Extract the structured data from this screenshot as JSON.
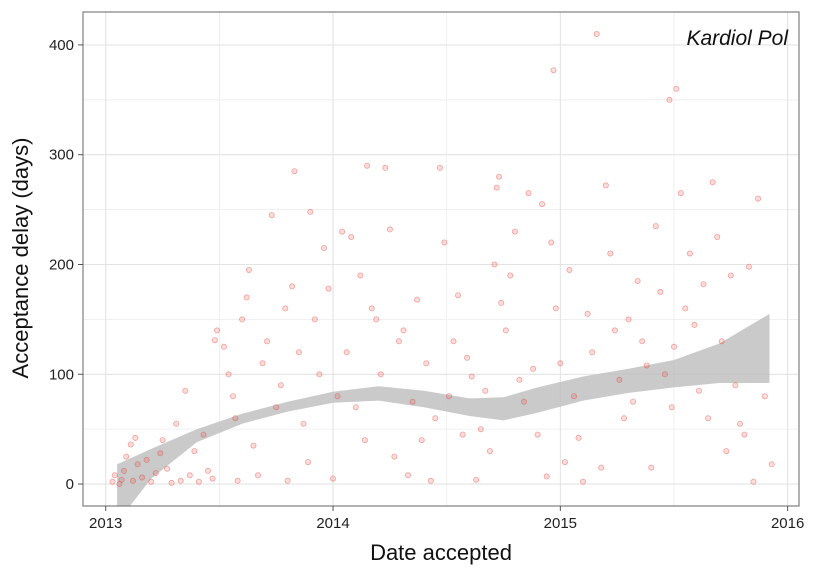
{
  "chart_data": {
    "type": "scatter",
    "title": "",
    "annotation": "Kardiol Pol",
    "xlabel": "Date accepted",
    "ylabel": "Acceptance delay (days)",
    "x_ticks": [
      "2013",
      "2014",
      "2015",
      "2016"
    ],
    "x_tick_values": [
      2013,
      2014,
      2015,
      2016
    ],
    "y_ticks": [
      "0",
      "100",
      "200",
      "300",
      "400"
    ],
    "y_tick_values": [
      0,
      100,
      200,
      300,
      400
    ],
    "xlim": [
      2012.9,
      2016.05
    ],
    "ylim": [
      -20,
      430
    ],
    "grid": true,
    "legend": "none",
    "colors": {
      "points": "#e8403a",
      "ribbon": "#bdbdbd",
      "grid": "#ececec",
      "panel_border": "#7f7f7f"
    },
    "smooth_band": {
      "x": [
        2013.05,
        2013.2,
        2013.4,
        2013.6,
        2013.8,
        2014.0,
        2014.2,
        2014.4,
        2014.6,
        2014.75,
        2014.9,
        2015.1,
        2015.3,
        2015.5,
        2015.7,
        2015.92
      ],
      "lower": [
        -35,
        5,
        38,
        55,
        66,
        74,
        76,
        70,
        62,
        58,
        65,
        76,
        83,
        88,
        92,
        92
      ],
      "upper": [
        18,
        32,
        50,
        64,
        75,
        84,
        89,
        85,
        78,
        79,
        88,
        98,
        105,
        113,
        128,
        155
      ]
    },
    "points": [
      [
        2013.03,
        2
      ],
      [
        2013.04,
        8
      ],
      [
        2013.06,
        0
      ],
      [
        2013.07,
        4
      ],
      [
        2013.08,
        12
      ],
      [
        2013.09,
        25
      ],
      [
        2013.11,
        36
      ],
      [
        2013.12,
        3
      ],
      [
        2013.13,
        42
      ],
      [
        2013.14,
        18
      ],
      [
        2013.16,
        6
      ],
      [
        2013.18,
        22
      ],
      [
        2013.2,
        2
      ],
      [
        2013.22,
        10
      ],
      [
        2013.24,
        28
      ],
      [
        2013.25,
        40
      ],
      [
        2013.27,
        14
      ],
      [
        2013.29,
        1
      ],
      [
        2013.31,
        55
      ],
      [
        2013.33,
        3
      ],
      [
        2013.35,
        85
      ],
      [
        2013.37,
        8
      ],
      [
        2013.39,
        30
      ],
      [
        2013.41,
        2
      ],
      [
        2013.43,
        45
      ],
      [
        2013.45,
        12
      ],
      [
        2013.47,
        5
      ],
      [
        2013.48,
        131
      ],
      [
        2013.49,
        140
      ],
      [
        2013.52,
        125
      ],
      [
        2013.54,
        100
      ],
      [
        2013.56,
        80
      ],
      [
        2013.57,
        60
      ],
      [
        2013.58,
        3
      ],
      [
        2013.6,
        150
      ],
      [
        2013.62,
        170
      ],
      [
        2013.63,
        195
      ],
      [
        2013.65,
        35
      ],
      [
        2013.67,
        8
      ],
      [
        2013.69,
        110
      ],
      [
        2013.71,
        130
      ],
      [
        2013.73,
        245
      ],
      [
        2013.75,
        70
      ],
      [
        2013.77,
        90
      ],
      [
        2013.79,
        160
      ],
      [
        2013.8,
        3
      ],
      [
        2013.82,
        180
      ],
      [
        2013.83,
        285
      ],
      [
        2013.85,
        120
      ],
      [
        2013.87,
        55
      ],
      [
        2013.89,
        20
      ],
      [
        2013.9,
        248
      ],
      [
        2013.92,
        150
      ],
      [
        2013.94,
        100
      ],
      [
        2013.96,
        215
      ],
      [
        2013.98,
        178
      ],
      [
        2014.0,
        5
      ],
      [
        2014.02,
        80
      ],
      [
        2014.04,
        230
      ],
      [
        2014.06,
        120
      ],
      [
        2014.08,
        225
      ],
      [
        2014.1,
        70
      ],
      [
        2014.12,
        190
      ],
      [
        2014.14,
        40
      ],
      [
        2014.15,
        290
      ],
      [
        2014.17,
        160
      ],
      [
        2014.19,
        150
      ],
      [
        2014.21,
        100
      ],
      [
        2014.23,
        288
      ],
      [
        2014.25,
        232
      ],
      [
        2014.27,
        25
      ],
      [
        2014.29,
        130
      ],
      [
        2014.31,
        140
      ],
      [
        2014.33,
        8
      ],
      [
        2014.35,
        75
      ],
      [
        2014.37,
        168
      ],
      [
        2014.39,
        40
      ],
      [
        2014.41,
        110
      ],
      [
        2014.43,
        3
      ],
      [
        2014.45,
        60
      ],
      [
        2014.47,
        288
      ],
      [
        2014.49,
        220
      ],
      [
        2014.51,
        80
      ],
      [
        2014.53,
        130
      ],
      [
        2014.55,
        172
      ],
      [
        2014.57,
        45
      ],
      [
        2014.59,
        115
      ],
      [
        2014.61,
        98
      ],
      [
        2014.63,
        4
      ],
      [
        2014.65,
        50
      ],
      [
        2014.67,
        85
      ],
      [
        2014.69,
        30
      ],
      [
        2014.71,
        200
      ],
      [
        2014.72,
        270
      ],
      [
        2014.73,
        280
      ],
      [
        2014.74,
        165
      ],
      [
        2014.76,
        140
      ],
      [
        2014.78,
        190
      ],
      [
        2014.8,
        230
      ],
      [
        2014.82,
        95
      ],
      [
        2014.84,
        75
      ],
      [
        2014.86,
        265
      ],
      [
        2014.88,
        105
      ],
      [
        2014.9,
        45
      ],
      [
        2014.92,
        255
      ],
      [
        2014.94,
        7
      ],
      [
        2014.96,
        220
      ],
      [
        2014.97,
        377
      ],
      [
        2014.98,
        160
      ],
      [
        2015.0,
        110
      ],
      [
        2015.02,
        20
      ],
      [
        2015.04,
        195
      ],
      [
        2015.06,
        80
      ],
      [
        2015.08,
        42
      ],
      [
        2015.1,
        2
      ],
      [
        2015.12,
        155
      ],
      [
        2015.14,
        120
      ],
      [
        2015.16,
        410
      ],
      [
        2015.18,
        15
      ],
      [
        2015.2,
        272
      ],
      [
        2015.22,
        210
      ],
      [
        2015.24,
        140
      ],
      [
        2015.26,
        95
      ],
      [
        2015.28,
        60
      ],
      [
        2015.3,
        150
      ],
      [
        2015.32,
        75
      ],
      [
        2015.34,
        185
      ],
      [
        2015.36,
        130
      ],
      [
        2015.38,
        108
      ],
      [
        2015.4,
        15
      ],
      [
        2015.42,
        235
      ],
      [
        2015.44,
        175
      ],
      [
        2015.46,
        100
      ],
      [
        2015.48,
        350
      ],
      [
        2015.49,
        70
      ],
      [
        2015.5,
        125
      ],
      [
        2015.51,
        360
      ],
      [
        2015.53,
        265
      ],
      [
        2015.55,
        160
      ],
      [
        2015.57,
        210
      ],
      [
        2015.59,
        145
      ],
      [
        2015.61,
        85
      ],
      [
        2015.63,
        182
      ],
      [
        2015.65,
        60
      ],
      [
        2015.67,
        275
      ],
      [
        2015.69,
        225
      ],
      [
        2015.71,
        130
      ],
      [
        2015.73,
        30
      ],
      [
        2015.75,
        190
      ],
      [
        2015.77,
        90
      ],
      [
        2015.79,
        55
      ],
      [
        2015.81,
        45
      ],
      [
        2015.83,
        198
      ],
      [
        2015.85,
        2
      ],
      [
        2015.87,
        260
      ],
      [
        2015.9,
        80
      ],
      [
        2015.93,
        18
      ]
    ]
  }
}
